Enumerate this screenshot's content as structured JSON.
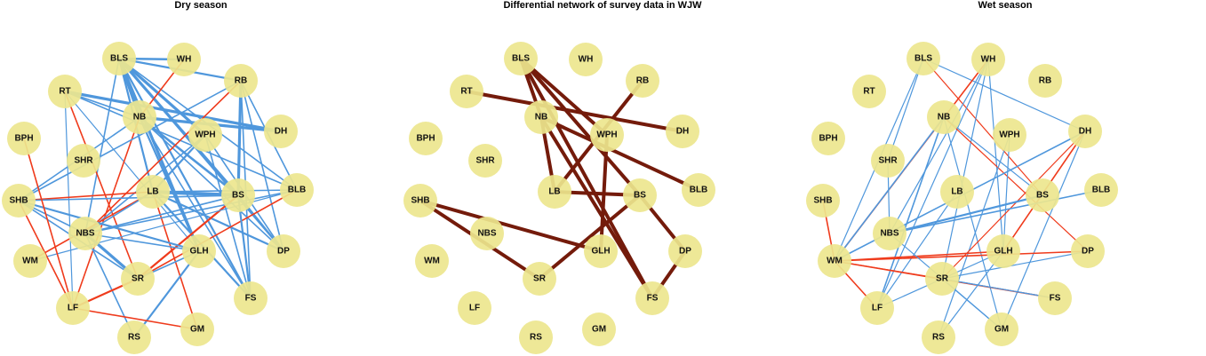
{
  "colors": {
    "node_fill": "#ede68e",
    "positive_edge": "#4f97dc",
    "negative_edge": "#ef3b1c",
    "differential_edge": "#741b0b"
  },
  "panels": [
    {
      "title": "Dry season",
      "edges": [
        {
          "a": "BLS",
          "b": "WH",
          "t": "pos",
          "w": 2.6
        },
        {
          "a": "BLS",
          "b": "RB",
          "t": "pos",
          "w": 2.2
        },
        {
          "a": "BLS",
          "b": "NB",
          "t": "pos",
          "w": 3.2
        },
        {
          "a": "BLS",
          "b": "WPH",
          "t": "pos",
          "w": 3.2
        },
        {
          "a": "BLS",
          "b": "LB",
          "t": "pos",
          "w": 2.2
        },
        {
          "a": "BLS",
          "b": "BS",
          "t": "pos",
          "w": 3.2
        },
        {
          "a": "BLS",
          "b": "BLB",
          "t": "pos",
          "w": 1.6
        },
        {
          "a": "BLS",
          "b": "GLH",
          "t": "pos",
          "w": 3.2
        },
        {
          "a": "BLS",
          "b": "DP",
          "t": "pos",
          "w": 1.6
        },
        {
          "a": "BLS",
          "b": "FS",
          "t": "pos",
          "w": 2.2
        },
        {
          "a": "BLS",
          "b": "NBS",
          "t": "pos",
          "w": 1.6
        },
        {
          "a": "RT",
          "b": "NB",
          "t": "pos",
          "w": 1.6
        },
        {
          "a": "RT",
          "b": "DH",
          "t": "pos",
          "w": 3.2
        },
        {
          "a": "RT",
          "b": "BLB",
          "t": "pos",
          "w": 1.6
        },
        {
          "a": "RT",
          "b": "GLH",
          "t": "pos",
          "w": 1.2
        },
        {
          "a": "RT",
          "b": "LF",
          "t": "pos",
          "w": 1.2
        },
        {
          "a": "RT",
          "b": "SR",
          "t": "neg",
          "w": 1.6
        },
        {
          "a": "NB",
          "b": "DH",
          "t": "pos",
          "w": 3.2
        },
        {
          "a": "NB",
          "b": "BS",
          "t": "pos",
          "w": 2.6
        },
        {
          "a": "NB",
          "b": "DP",
          "t": "pos",
          "w": 1.6
        },
        {
          "a": "NB",
          "b": "GLH",
          "t": "pos",
          "w": 2.2
        },
        {
          "a": "NB",
          "b": "SHB",
          "t": "pos",
          "w": 1.6
        },
        {
          "a": "NB",
          "b": "LF",
          "t": "neg",
          "w": 1.6
        },
        {
          "a": "NB",
          "b": "FS",
          "t": "pos",
          "w": 1.6
        },
        {
          "a": "RB",
          "b": "BS",
          "t": "pos",
          "w": 3.2
        },
        {
          "a": "RB",
          "b": "FS",
          "t": "pos",
          "w": 1.6
        },
        {
          "a": "RB",
          "b": "BLB",
          "t": "pos",
          "w": 1.6
        },
        {
          "a": "RB",
          "b": "SHB",
          "t": "pos",
          "w": 1.6
        },
        {
          "a": "RB",
          "b": "NBS",
          "t": "neg",
          "w": 1.6
        },
        {
          "a": "RB",
          "b": "DP",
          "t": "pos",
          "w": 1.6
        },
        {
          "a": "WH",
          "b": "NB",
          "t": "neg",
          "w": 1.6
        },
        {
          "a": "WPH",
          "b": "LB",
          "t": "pos",
          "w": 2.2
        },
        {
          "a": "WPH",
          "b": "NBS",
          "t": "pos",
          "w": 1.6
        },
        {
          "a": "WPH",
          "b": "FS",
          "t": "pos",
          "w": 1.6
        },
        {
          "a": "WPH",
          "b": "DP",
          "t": "pos",
          "w": 1.6
        },
        {
          "a": "LB",
          "b": "BS",
          "t": "pos",
          "w": 4
        },
        {
          "a": "LB",
          "b": "BLB",
          "t": "pos",
          "w": 1.6
        },
        {
          "a": "LB",
          "b": "SHB",
          "t": "neg",
          "w": 1.6
        },
        {
          "a": "LB",
          "b": "GM",
          "t": "neg",
          "w": 1.6
        },
        {
          "a": "LB",
          "b": "WM",
          "t": "neg",
          "w": 1.6
        },
        {
          "a": "LB",
          "b": "NBS",
          "t": "pos",
          "w": 1.6
        },
        {
          "a": "LB",
          "b": "DP",
          "t": "pos",
          "w": 2.2
        },
        {
          "a": "LB",
          "b": "FS",
          "t": "pos",
          "w": 2.2
        },
        {
          "a": "BS",
          "b": "SHB",
          "t": "pos",
          "w": 1.6
        },
        {
          "a": "BS",
          "b": "SR",
          "t": "neg",
          "w": 2.2
        },
        {
          "a": "BS",
          "b": "NBS",
          "t": "pos",
          "w": 1.6
        },
        {
          "a": "BS",
          "b": "DP",
          "t": "pos",
          "w": 2.2
        },
        {
          "a": "BLB",
          "b": "SR",
          "t": "neg",
          "w": 1.6
        },
        {
          "a": "BLB",
          "b": "WM",
          "t": "pos",
          "w": 1.2
        },
        {
          "a": "BLB",
          "b": "NBS",
          "t": "pos",
          "w": 1.6
        },
        {
          "a": "SHB",
          "b": "LF",
          "t": "neg",
          "w": 1.6
        },
        {
          "a": "SHB",
          "b": "GLH",
          "t": "pos",
          "w": 2.2
        },
        {
          "a": "SHB",
          "b": "SR",
          "t": "pos",
          "w": 1.6
        },
        {
          "a": "SHB",
          "b": "NBS",
          "t": "pos",
          "w": 1.6
        },
        {
          "a": "BPH",
          "b": "LF",
          "t": "neg",
          "w": 1.6
        },
        {
          "a": "NBS",
          "b": "SR",
          "t": "pos",
          "w": 3.2
        },
        {
          "a": "NBS",
          "b": "RS",
          "t": "pos",
          "w": 1.6
        },
        {
          "a": "NBS",
          "b": "GLH",
          "t": "pos",
          "w": 1.6
        },
        {
          "a": "SR",
          "b": "LF",
          "t": "neg",
          "w": 2.2
        },
        {
          "a": "SR",
          "b": "GLH",
          "t": "pos",
          "w": 1.6
        },
        {
          "a": "GLH",
          "b": "RS",
          "t": "pos",
          "w": 2.2
        },
        {
          "a": "LF",
          "b": "GM",
          "t": "neg",
          "w": 1.6
        },
        {
          "a": "FS",
          "b": "BS",
          "t": "pos",
          "w": 2.2
        }
      ]
    },
    {
      "title": "Differential network of survey data in WJW",
      "edges": [
        {
          "a": "BLS",
          "b": "NB",
          "t": "diff",
          "w": 4
        },
        {
          "a": "BLS",
          "b": "WPH",
          "t": "diff",
          "w": 4
        },
        {
          "a": "BLS",
          "b": "BS",
          "t": "diff",
          "w": 4
        },
        {
          "a": "BLS",
          "b": "FS",
          "t": "diff",
          "w": 4
        },
        {
          "a": "RT",
          "b": "DH",
          "t": "diff",
          "w": 4
        },
        {
          "a": "RB",
          "b": "LB",
          "t": "diff",
          "w": 4
        },
        {
          "a": "NB",
          "b": "LB",
          "t": "diff",
          "w": 4
        },
        {
          "a": "NB",
          "b": "BLB",
          "t": "diff",
          "w": 4
        },
        {
          "a": "NB",
          "b": "FS",
          "t": "diff",
          "w": 4
        },
        {
          "a": "WPH",
          "b": "GLH",
          "t": "diff",
          "w": 4
        },
        {
          "a": "LB",
          "b": "BS",
          "t": "diff",
          "w": 4
        },
        {
          "a": "BS",
          "b": "SR",
          "t": "diff",
          "w": 4
        },
        {
          "a": "BS",
          "b": "DP",
          "t": "diff",
          "w": 4
        },
        {
          "a": "SHB",
          "b": "SR",
          "t": "diff",
          "w": 4
        },
        {
          "a": "SHB",
          "b": "GLH",
          "t": "diff",
          "w": 4
        },
        {
          "a": "DP",
          "b": "FS",
          "t": "diff",
          "w": 4
        }
      ]
    },
    {
      "title": "Wet season",
      "edges": [
        {
          "a": "BLS",
          "b": "DH",
          "t": "pos",
          "w": 1.2
        },
        {
          "a": "BLS",
          "b": "BS",
          "t": "neg",
          "w": 1.2
        },
        {
          "a": "BLS",
          "b": "SHR",
          "t": "pos",
          "w": 1.2
        },
        {
          "a": "BLS",
          "b": "WM",
          "t": "pos",
          "w": 1.2
        },
        {
          "a": "WH",
          "b": "WM",
          "t": "neg",
          "w": 1.6
        },
        {
          "a": "WH",
          "b": "GLH",
          "t": "pos",
          "w": 1.2
        },
        {
          "a": "WH",
          "b": "NBS",
          "t": "pos",
          "w": 1.2
        },
        {
          "a": "WH",
          "b": "SR",
          "t": "pos",
          "w": 1.2
        },
        {
          "a": "WH",
          "b": "LF",
          "t": "pos",
          "w": 1.2
        },
        {
          "a": "NB",
          "b": "BS",
          "t": "pos",
          "w": 1.2
        },
        {
          "a": "NB",
          "b": "GM",
          "t": "pos",
          "w": 1.2
        },
        {
          "a": "NB",
          "b": "WM",
          "t": "pos",
          "w": 1.6
        },
        {
          "a": "NB",
          "b": "LF",
          "t": "pos",
          "w": 1.6
        },
        {
          "a": "NB",
          "b": "DP",
          "t": "neg",
          "w": 1.2
        },
        {
          "a": "WPH",
          "b": "GLH",
          "t": "pos",
          "w": 1.2
        },
        {
          "a": "WPH",
          "b": "RS",
          "t": "pos",
          "w": 1.2
        },
        {
          "a": "DH",
          "b": "WM",
          "t": "pos",
          "w": 1.6
        },
        {
          "a": "DH",
          "b": "GLH",
          "t": "neg",
          "w": 1.6
        },
        {
          "a": "DH",
          "b": "SR",
          "t": "neg",
          "w": 1.2
        },
        {
          "a": "DH",
          "b": "GM",
          "t": "pos",
          "w": 1.2
        },
        {
          "a": "SHR",
          "b": "NBS",
          "t": "pos",
          "w": 1.2
        },
        {
          "a": "BS",
          "b": "NBS",
          "t": "pos",
          "w": 2.2
        },
        {
          "a": "BLB",
          "b": "NBS",
          "t": "pos",
          "w": 1.6
        },
        {
          "a": "SHB",
          "b": "WM",
          "t": "neg",
          "w": 1.6
        },
        {
          "a": "LB",
          "b": "LF",
          "t": "pos",
          "w": 1.2
        },
        {
          "a": "WM",
          "b": "DP",
          "t": "neg",
          "w": 1.6
        },
        {
          "a": "WM",
          "b": "GLH",
          "t": "neg",
          "w": 1.6
        },
        {
          "a": "WM",
          "b": "FS",
          "t": "neg",
          "w": 1.6
        },
        {
          "a": "WM",
          "b": "LF",
          "t": "neg",
          "w": 1.6
        },
        {
          "a": "WM",
          "b": "SR",
          "t": "neg",
          "w": 1.2
        },
        {
          "a": "NBS",
          "b": "GM",
          "t": "pos",
          "w": 1.2
        },
        {
          "a": "SR",
          "b": "GM",
          "t": "pos",
          "w": 1.2
        },
        {
          "a": "GLH",
          "b": "RS",
          "t": "pos",
          "w": 1.2
        },
        {
          "a": "GLH",
          "b": "LF",
          "t": "pos",
          "w": 1.2
        },
        {
          "a": "SR",
          "b": "FS",
          "t": "pos",
          "w": 1.2
        },
        {
          "a": "FS",
          "b": "SR",
          "t": "pos",
          "w": 1.2
        },
        {
          "a": "DP",
          "b": "SR",
          "t": "pos",
          "w": 1.2
        }
      ]
    }
  ],
  "nodes": [
    "BLS",
    "WH",
    "RB",
    "RT",
    "NB",
    "DH",
    "BPH",
    "WPH",
    "SHR",
    "SHB",
    "LB",
    "BS",
    "BLB",
    "NBS",
    "GLH",
    "DP",
    "WM",
    "SR",
    "LF",
    "FS",
    "RS",
    "GM"
  ]
}
